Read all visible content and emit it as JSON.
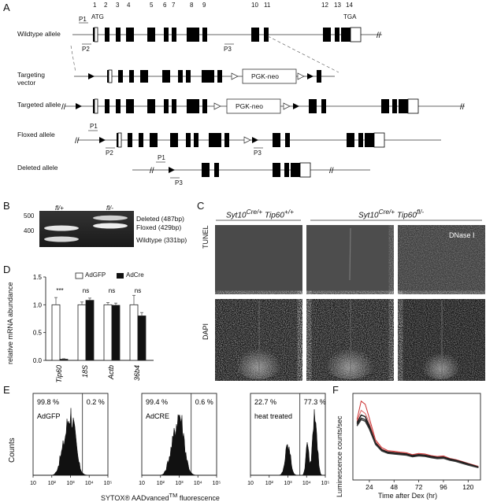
{
  "panel_letters": {
    "a": "A",
    "b": "B",
    "c": "C",
    "d": "D",
    "e": "E",
    "f": "F"
  },
  "panel_a": {
    "exon_numbers": [
      "1",
      "2",
      "3",
      "4",
      "5",
      "6",
      "7",
      "8",
      "9",
      "10",
      "11",
      "12",
      "13",
      "14"
    ],
    "atg": "ATG",
    "tga": "TGA",
    "rows": {
      "wildtype": "Wildtype allele",
      "targeting_vector": "Targeting vector",
      "targeted": "Targeted allele",
      "floxed": "Floxed allele",
      "deleted": "Deleted allele"
    },
    "primers": {
      "p1": "P1",
      "p2": "P2",
      "p3": "P3"
    },
    "cassette": "PGK-neo"
  },
  "panel_b": {
    "genotypes": [
      "fl/+",
      "fl/-"
    ],
    "ladder": [
      "500",
      "400"
    ],
    "bands": [
      "Deleted (487bp)",
      "Floxed (429bp)",
      "Wildtype (331bp)"
    ]
  },
  "panel_c": {
    "group1_html": "Syt10<sup>Cre/+</sup> Tip60<sup>+/+</sup>",
    "group2_html": "Syt10<sup>Cre/+</sup> Tip60<sup>fl/-</sup>",
    "rows": [
      "TUNEL",
      "DAPI"
    ],
    "dnase": "DNase I"
  },
  "panel_d": {
    "ylabel": "relative mRNA abundance",
    "legend": [
      "AdGFP",
      "AdCre"
    ],
    "yticks": [
      "0.0",
      "0.5",
      "1.0",
      "1.5"
    ],
    "sig": [
      "***",
      "ns",
      "ns",
      "ns"
    ]
  },
  "panel_e": {
    "ylabel": "Counts",
    "xlabel_html": "SYTOX® AADvanced<sup>TM</sup> fluorescence",
    "plots": [
      {
        "left_pct": "99.8 %",
        "right_pct": "0.2 %",
        "label": "AdGFP"
      },
      {
        "left_pct": "99.4 %",
        "right_pct": "0.6 %",
        "label": "AdCRE"
      },
      {
        "left_pct": "22.7 %",
        "right_pct": "77.3 %",
        "label": "heat treated"
      }
    ],
    "xticks": [
      "10²",
      "10³",
      "10⁴",
      "10⁵"
    ],
    "xticks_first": "10"
  },
  "panel_f": {
    "ylabel": "Luminescence counts/sec",
    "xlabel": "Time after Dex (hr)",
    "xticks": [
      "24",
      "48",
      "72",
      "96",
      "120"
    ]
  },
  "chart_data": [
    {
      "type": "bar",
      "categories": [
        "Tip60",
        "18S",
        "Actb",
        "36b4"
      ],
      "series": [
        {
          "name": "AdGFP",
          "values": [
            1.0,
            1.0,
            1.0,
            1.0
          ],
          "errors": [
            0.13,
            0.05,
            0.04,
            0.17
          ]
        },
        {
          "name": "AdCre",
          "values": [
            0.02,
            1.08,
            0.99,
            0.8
          ],
          "errors": [
            0.01,
            0.04,
            0.04,
            0.06
          ]
        }
      ],
      "ylabel": "relative mRNA abundance",
      "ylim": [
        0,
        1.5
      ],
      "colors": {
        "AdGFP": "#ffffff",
        "AdCre": "#111111"
      }
    },
    {
      "type": "line",
      "x": [
        12,
        16,
        20,
        24,
        30,
        36,
        42,
        48,
        54,
        60,
        66,
        72,
        78,
        84,
        90,
        96,
        102,
        108,
        114,
        120,
        126,
        130
      ],
      "series": [
        {
          "values": [
            1950,
            2550,
            2450,
            2000,
            1300,
            1050,
            950,
            930,
            900,
            880,
            820,
            860,
            840,
            790,
            760,
            780,
            700,
            660,
            600,
            540,
            480,
            440
          ],
          "color": "#cc3333"
        },
        {
          "values": [
            1900,
            2250,
            2150,
            1850,
            1250,
            1000,
            920,
            900,
            880,
            860,
            800,
            840,
            820,
            770,
            740,
            760,
            690,
            650,
            590,
            530,
            470,
            430
          ],
          "color": "#dd6666"
        },
        {
          "values": [
            1850,
            2100,
            2050,
            1750,
            1200,
            980,
            900,
            880,
            860,
            840,
            790,
            820,
            800,
            760,
            730,
            740,
            680,
            640,
            580,
            520,
            460,
            420
          ],
          "color": "#111111"
        },
        {
          "values": [
            1800,
            2000,
            1950,
            1700,
            1180,
            960,
            880,
            860,
            840,
            820,
            770,
            800,
            780,
            740,
            710,
            720,
            660,
            620,
            560,
            500,
            450,
            410
          ],
          "color": "#222222"
        },
        {
          "values": [
            1750,
            1950,
            1900,
            1650,
            1150,
            940,
            860,
            840,
            820,
            800,
            750,
            780,
            760,
            720,
            690,
            700,
            640,
            600,
            540,
            480,
            430,
            400
          ],
          "color": "#333333"
        }
      ],
      "xlabel": "Time after Dex (hr)",
      "ylabel": "Luminescence counts/sec"
    }
  ]
}
